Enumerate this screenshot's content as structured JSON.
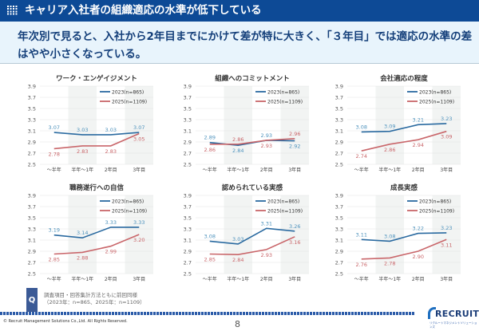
{
  "header": {
    "title": "キャリア入社者の組織適応の水準が低下している",
    "icon": "grid-icon"
  },
  "summary": "年次別で見ると、入社から2年目までにかけて差が特に大きく、「３年目」では適応の水準の差はやや小さくなっている。",
  "colors": {
    "series_2023": "#2a6aa0",
    "series_2025": "#c9666a",
    "header_bg": "#0d4a96"
  },
  "chart_data": [
    {
      "type": "line",
      "title": "ワーク・エンゲイジメント",
      "categories": [
        "～半年",
        "半年～1年",
        "2年目",
        "3年目"
      ],
      "ylim": [
        2.5,
        3.9
      ],
      "yticks": [
        "3.9",
        "3.7",
        "3.5",
        "3.3",
        "3.1",
        "2.9",
        "2.7",
        "2.5"
      ],
      "legend": "top-right",
      "series": [
        {
          "name": "2023(n=865)",
          "values": [
            3.07,
            3.03,
            3.03,
            3.07
          ]
        },
        {
          "name": "2025(n=1109)",
          "values": [
            2.78,
            2.83,
            2.83,
            3.05
          ]
        }
      ]
    },
    {
      "type": "line",
      "title": "組織へのコミットメント",
      "categories": [
        "～半年",
        "半年～1年",
        "2年目",
        "3年目"
      ],
      "ylim": [
        2.5,
        3.9
      ],
      "yticks": [
        "3.9",
        "3.7",
        "3.5",
        "3.3",
        "3.1",
        "2.9",
        "2.7",
        "2.5"
      ],
      "legend": "top-right",
      "series": [
        {
          "name": "2023(n=865)",
          "values": [
            2.89,
            2.84,
            2.93,
            2.92
          ]
        },
        {
          "name": "2025(n=1109)",
          "values": [
            2.86,
            2.86,
            2.93,
            2.96
          ]
        }
      ]
    },
    {
      "type": "line",
      "title": "会社適応の程度",
      "categories": [
        "～半年",
        "半年～1年",
        "2年目",
        "3年目"
      ],
      "ylim": [
        2.5,
        3.9
      ],
      "yticks": [
        "3.9",
        "3.7",
        "3.5",
        "3.3",
        "3.1",
        "2.9",
        "2.7",
        "2.5"
      ],
      "legend": "top-right",
      "series": [
        {
          "name": "2023(n=865)",
          "values": [
            3.08,
            3.09,
            3.21,
            3.23
          ]
        },
        {
          "name": "2025(n=1109)",
          "values": [
            2.74,
            2.86,
            2.94,
            3.09
          ]
        }
      ]
    },
    {
      "type": "line",
      "title": "職務遂行への自信",
      "categories": [
        "～半年",
        "半年～1年",
        "2年目",
        "3年目"
      ],
      "ylim": [
        2.5,
        3.9
      ],
      "yticks": [
        "3.9",
        "3.7",
        "3.5",
        "3.3",
        "3.1",
        "2.9",
        "2.7",
        "2.5"
      ],
      "legend": "top-right",
      "series": [
        {
          "name": "2023(n=865)",
          "values": [
            3.19,
            3.14,
            3.33,
            3.33
          ]
        },
        {
          "name": "2025(n=1109)",
          "values": [
            2.85,
            2.88,
            2.99,
            3.2
          ]
        }
      ]
    },
    {
      "type": "line",
      "title": "認められている実感",
      "categories": [
        "～半年",
        "半年～1年",
        "2年目",
        "3年目"
      ],
      "ylim": [
        2.5,
        3.9
      ],
      "yticks": [
        "3.9",
        "3.7",
        "3.5",
        "3.3",
        "3.1",
        "2.9",
        "2.7",
        "2.5"
      ],
      "legend": "top-right",
      "series": [
        {
          "name": "2023(n=865)",
          "values": [
            3.08,
            3.03,
            3.31,
            3.26
          ]
        },
        {
          "name": "2025(n=1109)",
          "values": [
            2.85,
            2.84,
            2.93,
            3.16
          ]
        }
      ]
    },
    {
      "type": "line",
      "title": "成長実感",
      "categories": [
        "～半年",
        "半年～1年",
        "2年目",
        "3年目"
      ],
      "ylim": [
        2.5,
        3.9
      ],
      "yticks": [
        "3.9",
        "3.7",
        "3.5",
        "3.3",
        "3.1",
        "2.9",
        "2.7",
        "2.5"
      ],
      "legend": "top-right",
      "series": [
        {
          "name": "2023(n=865)",
          "values": [
            3.11,
            3.08,
            3.22,
            3.23
          ]
        },
        {
          "name": "2025(n=1109)",
          "values": [
            2.76,
            2.78,
            2.9,
            3.11
          ]
        }
      ]
    }
  ],
  "footer": {
    "q_label": "Q",
    "note_line1": "調査項目・回答集計方法ともに前回同様",
    "note_line2": "（2023年：n=865、2025年：n=1109）",
    "copyright": "© Recruit Management Solutions Co.,Ltd. All Rights Reserved.",
    "page_number": "8",
    "logo": "RECRUIT",
    "logo_sub": "リクルートマネジメントソリューションズ"
  }
}
